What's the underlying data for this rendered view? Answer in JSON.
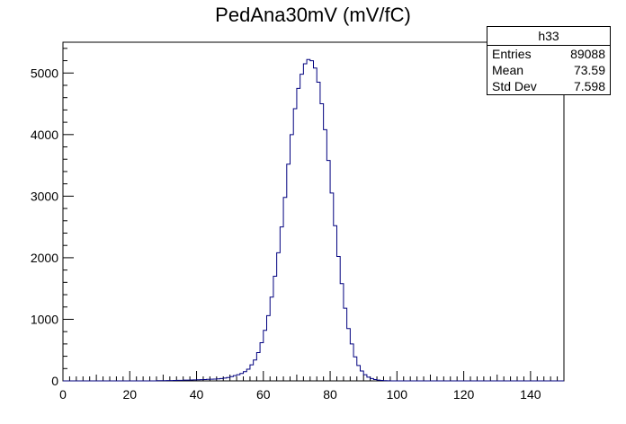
{
  "chart_data": {
    "type": "histogram",
    "title": "PedAna30mV (mV/fC)",
    "xlabel": "",
    "ylabel": "",
    "xlim": [
      0,
      150
    ],
    "ylim": [
      0,
      5500
    ],
    "bin_width": 1,
    "x_ticks": [
      0,
      20,
      40,
      60,
      80,
      100,
      120,
      140
    ],
    "y_ticks": [
      0,
      1000,
      2000,
      3000,
      4000,
      5000
    ],
    "line_color": "#00007f",
    "bins": [
      {
        "x": 28,
        "y": 3
      },
      {
        "x": 29,
        "y": 3
      },
      {
        "x": 30,
        "y": 4
      },
      {
        "x": 31,
        "y": 5
      },
      {
        "x": 32,
        "y": 6
      },
      {
        "x": 33,
        "y": 8
      },
      {
        "x": 34,
        "y": 9
      },
      {
        "x": 35,
        "y": 10
      },
      {
        "x": 36,
        "y": 12
      },
      {
        "x": 37,
        "y": 12
      },
      {
        "x": 38,
        "y": 14
      },
      {
        "x": 39,
        "y": 16
      },
      {
        "x": 40,
        "y": 18
      },
      {
        "x": 41,
        "y": 20
      },
      {
        "x": 42,
        "y": 22
      },
      {
        "x": 43,
        "y": 25
      },
      {
        "x": 44,
        "y": 28
      },
      {
        "x": 45,
        "y": 30
      },
      {
        "x": 46,
        "y": 33
      },
      {
        "x": 47,
        "y": 38
      },
      {
        "x": 48,
        "y": 45
      },
      {
        "x": 49,
        "y": 55
      },
      {
        "x": 50,
        "y": 70
      },
      {
        "x": 51,
        "y": 85
      },
      {
        "x": 52,
        "y": 100
      },
      {
        "x": 53,
        "y": 120
      },
      {
        "x": 54,
        "y": 150
      },
      {
        "x": 55,
        "y": 190
      },
      {
        "x": 56,
        "y": 260
      },
      {
        "x": 57,
        "y": 340
      },
      {
        "x": 58,
        "y": 460
      },
      {
        "x": 59,
        "y": 620
      },
      {
        "x": 60,
        "y": 820
      },
      {
        "x": 61,
        "y": 1060
      },
      {
        "x": 62,
        "y": 1360
      },
      {
        "x": 63,
        "y": 1700
      },
      {
        "x": 64,
        "y": 2080
      },
      {
        "x": 65,
        "y": 2500
      },
      {
        "x": 66,
        "y": 2980
      },
      {
        "x": 67,
        "y": 3520
      },
      {
        "x": 68,
        "y": 4000
      },
      {
        "x": 69,
        "y": 4420
      },
      {
        "x": 70,
        "y": 4750
      },
      {
        "x": 71,
        "y": 4980
      },
      {
        "x": 72,
        "y": 5150
      },
      {
        "x": 73,
        "y": 5220
      },
      {
        "x": 74,
        "y": 5200
      },
      {
        "x": 75,
        "y": 5080
      },
      {
        "x": 76,
        "y": 4850
      },
      {
        "x": 77,
        "y": 4500
      },
      {
        "x": 78,
        "y": 4080
      },
      {
        "x": 79,
        "y": 3580
      },
      {
        "x": 80,
        "y": 3050
      },
      {
        "x": 81,
        "y": 2520
      },
      {
        "x": 82,
        "y": 2020
      },
      {
        "x": 83,
        "y": 1580
      },
      {
        "x": 84,
        "y": 1180
      },
      {
        "x": 85,
        "y": 850
      },
      {
        "x": 86,
        "y": 600
      },
      {
        "x": 87,
        "y": 390
      },
      {
        "x": 88,
        "y": 250
      },
      {
        "x": 89,
        "y": 160
      },
      {
        "x": 90,
        "y": 100
      },
      {
        "x": 91,
        "y": 60
      },
      {
        "x": 92,
        "y": 38
      },
      {
        "x": 93,
        "y": 22
      },
      {
        "x": 94,
        "y": 13
      },
      {
        "x": 95,
        "y": 7
      },
      {
        "x": 96,
        "y": 4
      },
      {
        "x": 97,
        "y": 2
      }
    ]
  },
  "stats": {
    "name": "h33",
    "rows": [
      {
        "label": "Entries",
        "value": "89088"
      },
      {
        "label": "Mean",
        "value": "73.59"
      },
      {
        "label": "Std Dev",
        "value": "7.598"
      }
    ]
  }
}
